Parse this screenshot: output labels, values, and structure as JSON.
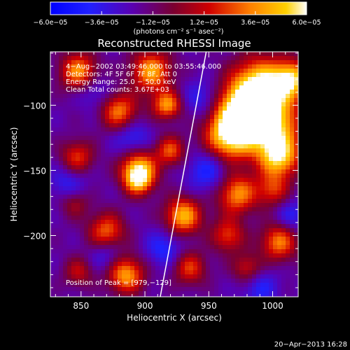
{
  "colorbar": {
    "ticks": [
      "−6.0e−05",
      "−3.6e−05",
      "−1.2e−05",
      "1.2e−05",
      "3.6e−05",
      "6.0e−05"
    ],
    "units_label": "(photons cm⁻² s⁻¹ asec⁻²)",
    "range": [
      -6e-05,
      6e-05
    ]
  },
  "chart_data": {
    "type": "heatmap",
    "title": "Reconstructed RHESSI Image",
    "xlabel": "Heliocentric X (arcsec)",
    "ylabel": "Heliocentric Y (arcsec)",
    "xlim": [
      826,
      1020
    ],
    "ylim": [
      -247,
      -59
    ],
    "xticks": [
      850,
      900,
      950,
      1000
    ],
    "xtick_labels": [
      "850",
      "900",
      "950",
      "1000"
    ],
    "yticks": [
      -100,
      -150,
      -200
    ],
    "ytick_labels": [
      "−100",
      "−150",
      "−200"
    ],
    "annotations": [
      "4−Aug−2002 03:49:46.000 to 03:55:46.000",
      "Detectors: 4F 5F 6F 7F 8F, Att 0",
      "Energy Range: 25.0 − 50.0 keV",
      "Clean    Total counts: 3.67E+03"
    ],
    "peak_label": "Position of Peak = [979,−129]",
    "peak": [
      979,
      -129
    ],
    "limb_line": [
      [
        912,
        -247
      ],
      [
        948,
        -59
      ]
    ],
    "blobs": [
      [
        848,
        -74,
        0.75,
        10
      ],
      [
        905,
        -74,
        0.8,
        11
      ],
      [
        990,
        -85,
        1.0,
        15
      ],
      [
        1015,
        -80,
        0.85,
        10
      ],
      [
        975,
        -105,
        0.95,
        14
      ],
      [
        998,
        -115,
        1.0,
        16
      ],
      [
        965,
        -125,
        0.9,
        13
      ],
      [
        1005,
        -140,
        0.85,
        11
      ],
      [
        880,
        -105,
        0.7,
        10
      ],
      [
        847,
        -140,
        0.55,
        9
      ],
      [
        895,
        -148,
        0.8,
        10
      ],
      [
        920,
        -135,
        0.6,
        8
      ],
      [
        972,
        -168,
        0.75,
        11
      ],
      [
        1000,
        -165,
        0.5,
        9
      ],
      [
        930,
        -185,
        0.85,
        10
      ],
      [
        870,
        -197,
        0.65,
        10
      ],
      [
        1005,
        -205,
        0.7,
        10
      ],
      [
        965,
        -200,
        0.55,
        9
      ],
      [
        885,
        -230,
        0.8,
        10
      ],
      [
        935,
        -225,
        0.55,
        9
      ],
      [
        980,
        -225,
        0.45,
        8
      ],
      [
        845,
        -175,
        0.35,
        8
      ],
      [
        915,
        -100,
        0.45,
        8
      ],
      [
        848,
        -228,
        0.4,
        8
      ],
      [
        895,
        -158,
        0.7,
        8
      ],
      [
        920,
        -100,
        0.35,
        7
      ]
    ],
    "dips": [
      [
        890,
        -125,
        0.35,
        10
      ],
      [
        950,
        -150,
        0.4,
        12
      ],
      [
        840,
        -160,
        0.3,
        10
      ],
      [
        915,
        -210,
        0.35,
        10
      ],
      [
        990,
        -240,
        0.3,
        10
      ],
      [
        860,
        -90,
        0.25,
        9
      ],
      [
        945,
        -95,
        0.3,
        10
      ],
      [
        1015,
        -185,
        0.3,
        9
      ],
      [
        870,
        -215,
        0.3,
        9
      ]
    ]
  },
  "footer": {
    "timestamp": "20−Apr−2013 16:28"
  }
}
